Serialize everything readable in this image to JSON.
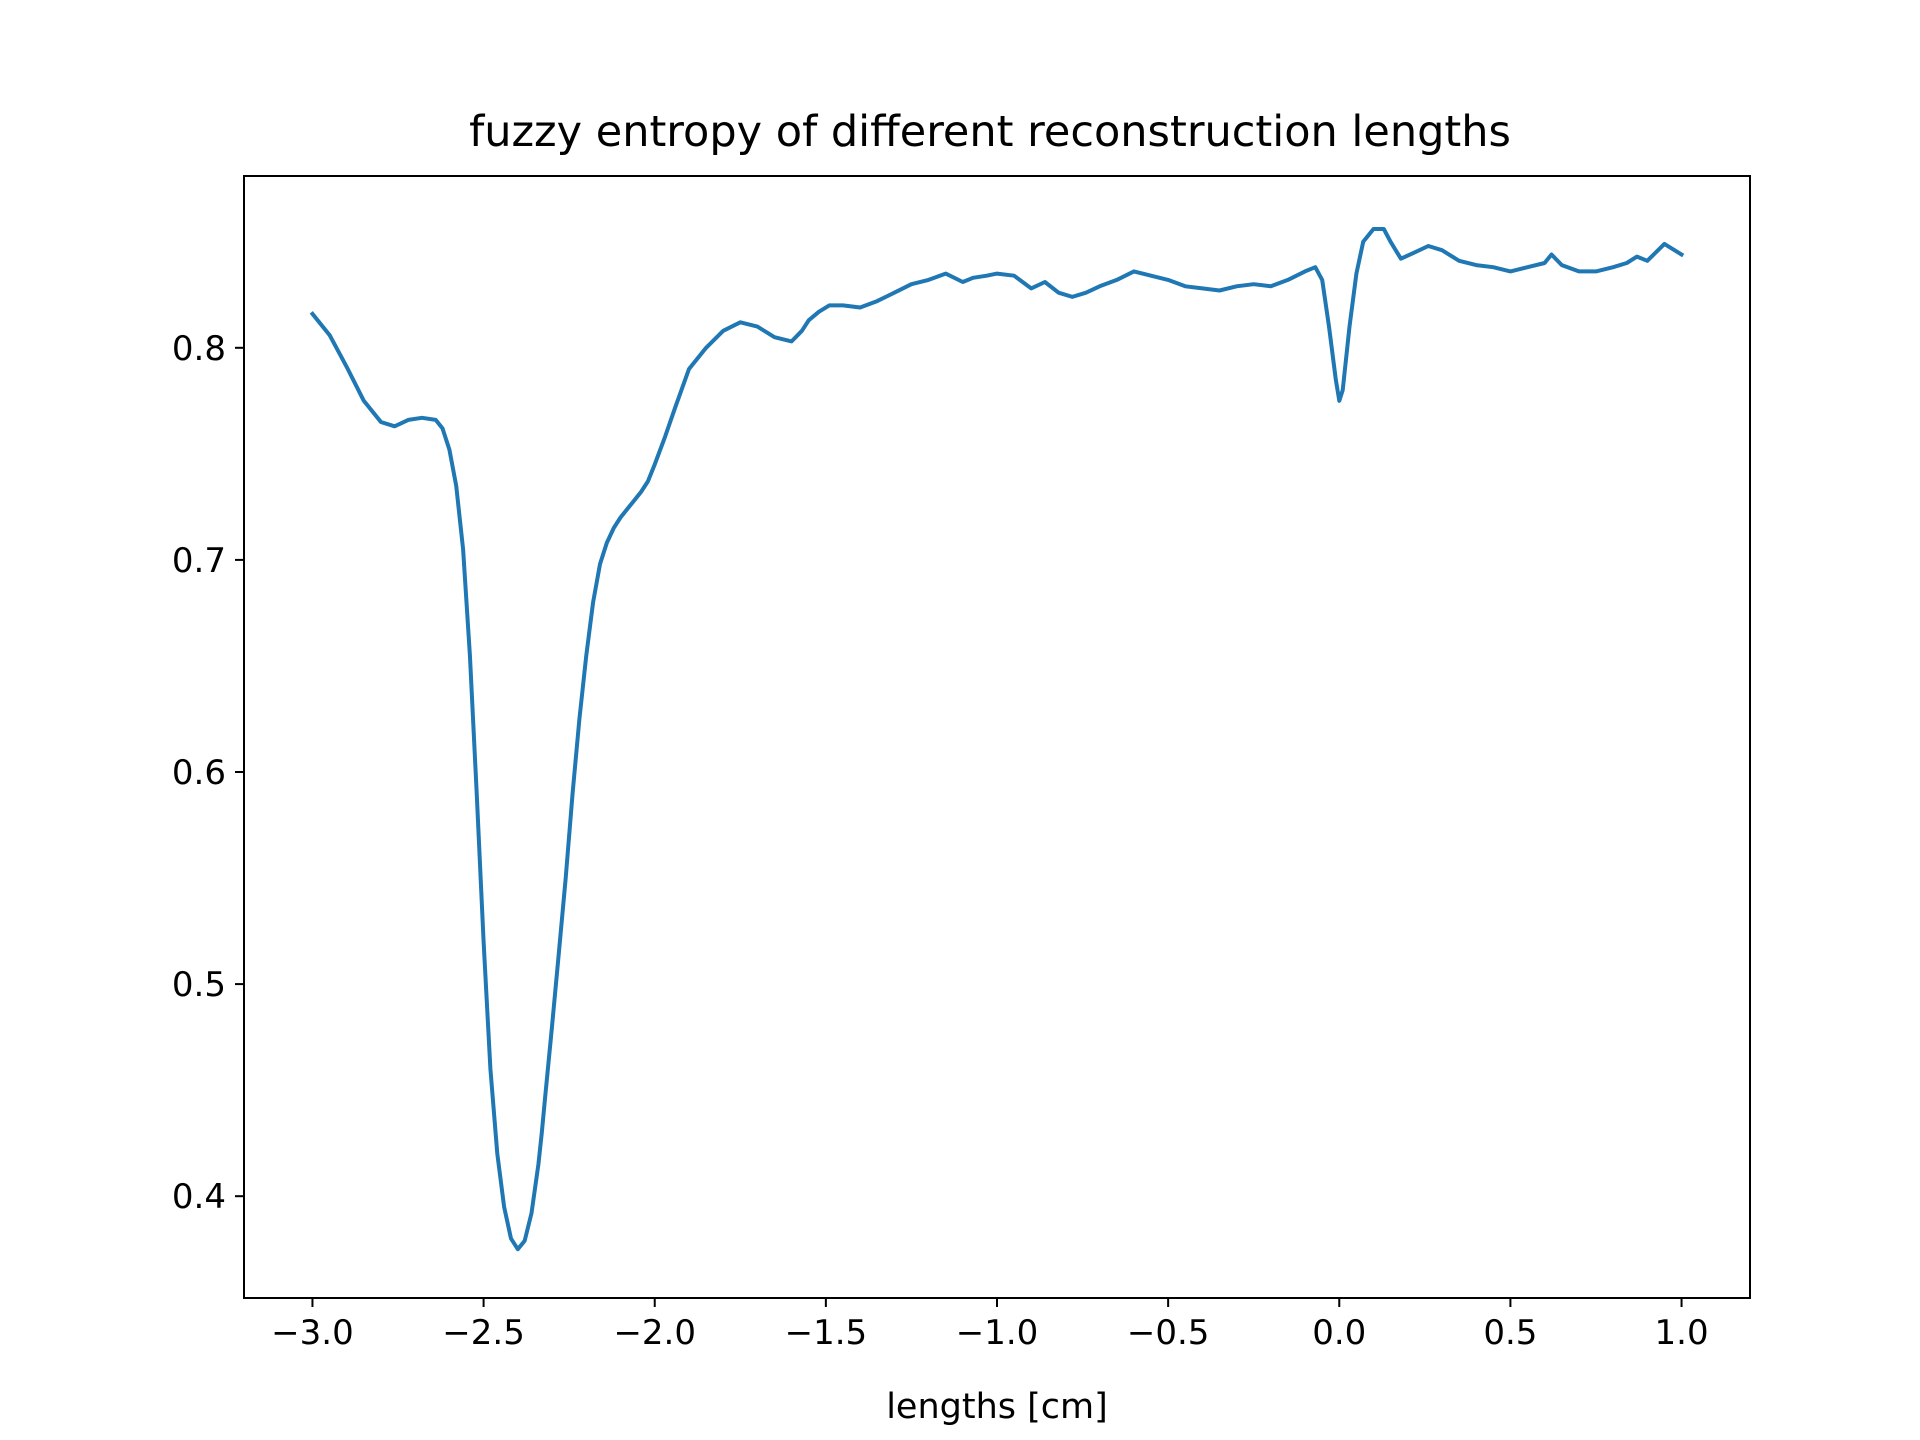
{
  "chart_data": {
    "type": "line",
    "title": "fuzzy entropy of different reconstruction lengths",
    "xlabel": "lengths [cm]",
    "ylabel": "",
    "xlim": [
      -3.2,
      1.2
    ],
    "ylim": [
      0.352,
      0.881
    ],
    "xticks": [
      {
        "value": -3.0,
        "label": "−3.0"
      },
      {
        "value": -2.5,
        "label": "−2.5"
      },
      {
        "value": -2.0,
        "label": "−2.0"
      },
      {
        "value": -1.5,
        "label": "−1.5"
      },
      {
        "value": -1.0,
        "label": "−1.0"
      },
      {
        "value": -0.5,
        "label": "−0.5"
      },
      {
        "value": 0.0,
        "label": "0.0"
      },
      {
        "value": 0.5,
        "label": "0.5"
      },
      {
        "value": 1.0,
        "label": "1.0"
      }
    ],
    "yticks": [
      {
        "value": 0.4,
        "label": "0.4"
      },
      {
        "value": 0.5,
        "label": "0.5"
      },
      {
        "value": 0.6,
        "label": "0.6"
      },
      {
        "value": 0.7,
        "label": "0.7"
      },
      {
        "value": 0.8,
        "label": "0.8"
      }
    ],
    "grid": false,
    "series": [
      {
        "color": "#1f77b4",
        "x": [
          -3.0,
          -2.95,
          -2.9,
          -2.85,
          -2.8,
          -2.76,
          -2.72,
          -2.68,
          -2.64,
          -2.62,
          -2.6,
          -2.58,
          -2.56,
          -2.54,
          -2.52,
          -2.5,
          -2.48,
          -2.46,
          -2.44,
          -2.42,
          -2.4,
          -2.38,
          -2.36,
          -2.34,
          -2.33,
          -2.32,
          -2.3,
          -2.28,
          -2.26,
          -2.24,
          -2.22,
          -2.2,
          -2.18,
          -2.16,
          -2.14,
          -2.12,
          -2.1,
          -2.08,
          -2.06,
          -2.04,
          -2.02,
          -2.0,
          -1.97,
          -1.94,
          -1.9,
          -1.85,
          -1.8,
          -1.75,
          -1.7,
          -1.65,
          -1.6,
          -1.57,
          -1.55,
          -1.52,
          -1.49,
          -1.45,
          -1.4,
          -1.35,
          -1.3,
          -1.25,
          -1.2,
          -1.15,
          -1.1,
          -1.07,
          -1.03,
          -1.0,
          -0.95,
          -0.9,
          -0.86,
          -0.82,
          -0.78,
          -0.74,
          -0.7,
          -0.65,
          -0.6,
          -0.55,
          -0.5,
          -0.45,
          -0.4,
          -0.35,
          -0.3,
          -0.25,
          -0.2,
          -0.15,
          -0.1,
          -0.07,
          -0.05,
          -0.03,
          -0.01,
          0.0,
          0.01,
          0.03,
          0.05,
          0.07,
          0.1,
          0.13,
          0.15,
          0.18,
          0.22,
          0.26,
          0.3,
          0.35,
          0.4,
          0.45,
          0.5,
          0.55,
          0.6,
          0.62,
          0.65,
          0.7,
          0.75,
          0.8,
          0.84,
          0.87,
          0.9,
          0.95,
          1.0
        ],
        "y": [
          0.816,
          0.806,
          0.791,
          0.775,
          0.765,
          0.763,
          0.766,
          0.767,
          0.766,
          0.762,
          0.752,
          0.735,
          0.705,
          0.655,
          0.59,
          0.52,
          0.46,
          0.42,
          0.395,
          0.38,
          0.375,
          0.379,
          0.392,
          0.415,
          0.43,
          0.447,
          0.48,
          0.515,
          0.55,
          0.59,
          0.625,
          0.655,
          0.68,
          0.698,
          0.708,
          0.715,
          0.72,
          0.724,
          0.728,
          0.732,
          0.737,
          0.745,
          0.758,
          0.772,
          0.79,
          0.8,
          0.808,
          0.812,
          0.81,
          0.805,
          0.803,
          0.808,
          0.813,
          0.817,
          0.82,
          0.82,
          0.819,
          0.822,
          0.826,
          0.83,
          0.832,
          0.835,
          0.831,
          0.833,
          0.834,
          0.835,
          0.834,
          0.828,
          0.831,
          0.826,
          0.824,
          0.826,
          0.829,
          0.832,
          0.836,
          0.834,
          0.832,
          0.829,
          0.828,
          0.827,
          0.829,
          0.83,
          0.829,
          0.832,
          0.836,
          0.838,
          0.832,
          0.81,
          0.785,
          0.775,
          0.78,
          0.81,
          0.835,
          0.85,
          0.856,
          0.856,
          0.85,
          0.842,
          0.845,
          0.848,
          0.846,
          0.841,
          0.839,
          0.838,
          0.836,
          0.838,
          0.84,
          0.844,
          0.839,
          0.836,
          0.836,
          0.838,
          0.84,
          0.843,
          0.841,
          0.849,
          0.844
        ]
      }
    ]
  }
}
